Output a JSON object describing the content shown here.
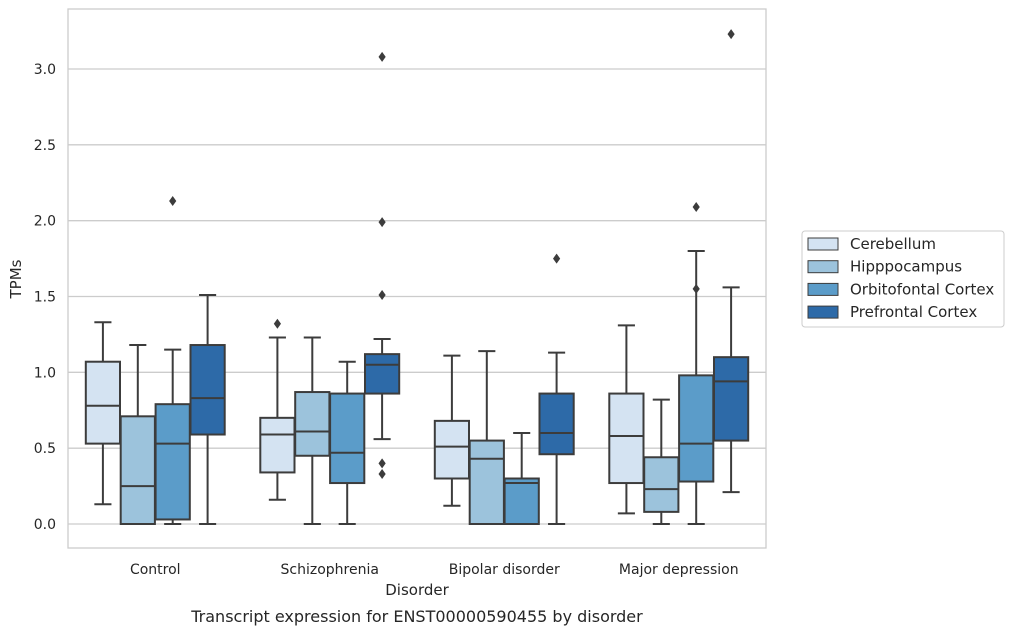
{
  "chart_data": {
    "type": "box",
    "xlabel": "Disorder",
    "ylabel": "TPMs",
    "caption": "Transcript expression for ENST00000590455 by disorder",
    "ylim": [
      -0.15,
      3.4
    ],
    "yticks": [
      "0.0",
      "0.5",
      "1.0",
      "1.5",
      "2.0",
      "2.5",
      "3.0"
    ],
    "grid": "horizontal",
    "legend_position": "right",
    "categories": [
      "Control",
      "Schizophrenia",
      "Bipolar disorder",
      "Major depression"
    ],
    "series": [
      {
        "name": "Cerebellum",
        "color": "#d4e3f2",
        "boxes": [
          {
            "whislo": 0.13,
            "q1": 0.53,
            "med": 0.78,
            "q3": 1.07,
            "whishi": 1.33,
            "fliers": []
          },
          {
            "whislo": 0.16,
            "q1": 0.34,
            "med": 0.59,
            "q3": 0.7,
            "whishi": 1.23,
            "fliers": [
              1.32
            ]
          },
          {
            "whislo": 0.12,
            "q1": 0.3,
            "med": 0.51,
            "q3": 0.68,
            "whishi": 1.11,
            "fliers": []
          },
          {
            "whislo": 0.07,
            "q1": 0.27,
            "med": 0.58,
            "q3": 0.86,
            "whishi": 1.31,
            "fliers": []
          }
        ]
      },
      {
        "name": "Hipppocampus",
        "color": "#9cc3dc",
        "boxes": [
          {
            "whislo": 0.0,
            "q1": 0.0,
            "med": 0.25,
            "q3": 0.71,
            "whishi": 1.18,
            "fliers": []
          },
          {
            "whislo": 0.0,
            "q1": 0.45,
            "med": 0.61,
            "q3": 0.87,
            "whishi": 1.23,
            "fliers": []
          },
          {
            "whislo": 0.0,
            "q1": 0.0,
            "med": 0.43,
            "q3": 0.55,
            "whishi": 1.14,
            "fliers": []
          },
          {
            "whislo": 0.0,
            "q1": 0.08,
            "med": 0.23,
            "q3": 0.44,
            "whishi": 0.82,
            "fliers": []
          }
        ]
      },
      {
        "name": "Orbitofontal Cortex",
        "color": "#5b9cc9",
        "boxes": [
          {
            "whislo": 0.0,
            "q1": 0.03,
            "med": 0.53,
            "q3": 0.79,
            "whishi": 1.15,
            "fliers": [
              2.13
            ]
          },
          {
            "whislo": 0.0,
            "q1": 0.27,
            "med": 0.47,
            "q3": 0.86,
            "whishi": 1.07,
            "fliers": []
          },
          {
            "whislo": 0.0,
            "q1": 0.0,
            "med": 0.27,
            "q3": 0.3,
            "whishi": 0.6,
            "fliers": []
          },
          {
            "whislo": 0.0,
            "q1": 0.28,
            "med": 0.53,
            "q3": 0.98,
            "whishi": 1.8,
            "fliers": [
              1.55,
              2.09
            ]
          }
        ]
      },
      {
        "name": "Prefrontal Cortex",
        "color": "#2d6aa8",
        "boxes": [
          {
            "whislo": 0.0,
            "q1": 0.59,
            "med": 0.83,
            "q3": 1.18,
            "whishi": 1.51,
            "fliers": []
          },
          {
            "whislo": 0.56,
            "q1": 0.86,
            "med": 1.05,
            "q3": 1.12,
            "whishi": 1.22,
            "fliers": [
              0.33,
              0.4,
              1.51,
              1.99,
              3.08
            ]
          },
          {
            "whislo": 0.0,
            "q1": 0.46,
            "med": 0.6,
            "q3": 0.86,
            "whishi": 1.13,
            "fliers": [
              1.75
            ]
          },
          {
            "whislo": 0.21,
            "q1": 0.55,
            "med": 0.94,
            "q3": 1.1,
            "whishi": 1.56,
            "fliers": [
              3.23
            ]
          }
        ]
      }
    ]
  }
}
